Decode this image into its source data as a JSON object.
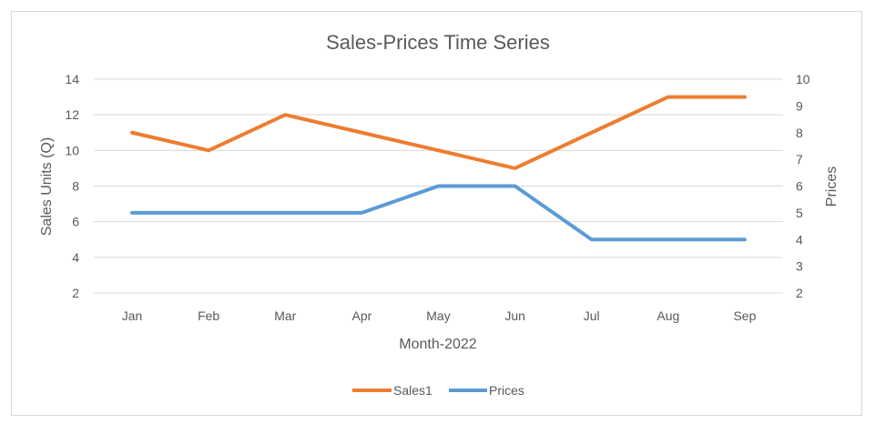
{
  "chart_data": {
    "type": "line",
    "title": "Sales-Prices Time Series",
    "xlabel": "Month-2022",
    "ylabel": "Sales Units (Q)",
    "y2label": "Prices",
    "categories": [
      "Jan",
      "Feb",
      "Mar",
      "Apr",
      "May",
      "Jun",
      "Jul",
      "Aug",
      "Sep"
    ],
    "ylim": [
      2,
      14
    ],
    "yticks": [
      "2",
      "4",
      "6",
      "8",
      "10",
      "12",
      "14"
    ],
    "y2lim": [
      2,
      10
    ],
    "y2ticks": [
      "2",
      "3",
      "4",
      "5",
      "6",
      "7",
      "8",
      "9",
      "10"
    ],
    "grid": true,
    "legend_position": "bottom",
    "series": [
      {
        "name": "Sales1",
        "axis": "left",
        "color": "#ED7D31",
        "values": [
          11,
          10,
          12,
          11,
          10,
          9,
          11,
          13,
          13
        ]
      },
      {
        "name": "Prices",
        "axis": "right",
        "color": "#5B9BD5",
        "values": [
          5,
          5,
          5,
          5,
          6,
          6,
          4,
          4,
          4
        ]
      }
    ]
  }
}
